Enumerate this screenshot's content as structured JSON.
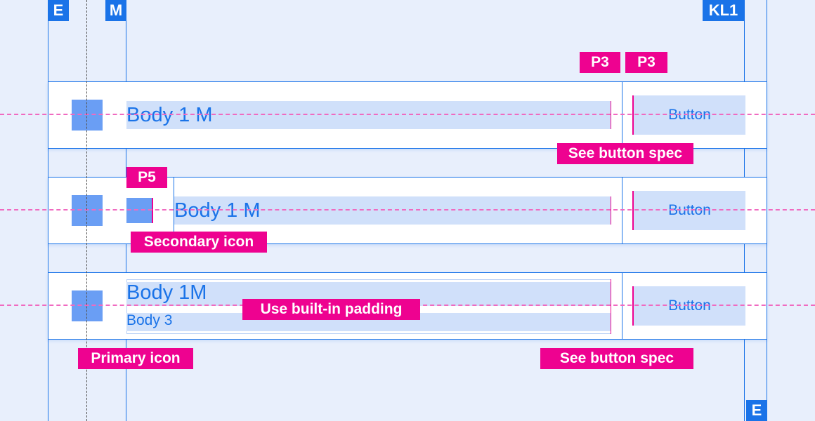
{
  "keylines": {
    "edge_top": "E",
    "margin": "M",
    "keyline": "KL1",
    "edge_bottom": "E"
  },
  "annotations": {
    "p3_left": "P3",
    "p3_right": "P3",
    "see_button_spec": "See button spec",
    "p5": "P5",
    "secondary_icon": "Secondary icon",
    "use_built_in_padding": "Use built-in padding",
    "primary_icon": "Primary icon",
    "see_button_spec_bottom": "See button spec"
  },
  "rows": [
    {
      "primary": "Body 1 M",
      "button": "Button"
    },
    {
      "primary": "Body 1 M",
      "button": "Button"
    },
    {
      "primary": "Body 1M",
      "secondary": "Body 3",
      "button": "Button"
    }
  ],
  "colors": {
    "keyline": "#1a73e8",
    "annotation": "#ee0290",
    "background": "#e8effc",
    "highlight": "#d0e0fa"
  }
}
